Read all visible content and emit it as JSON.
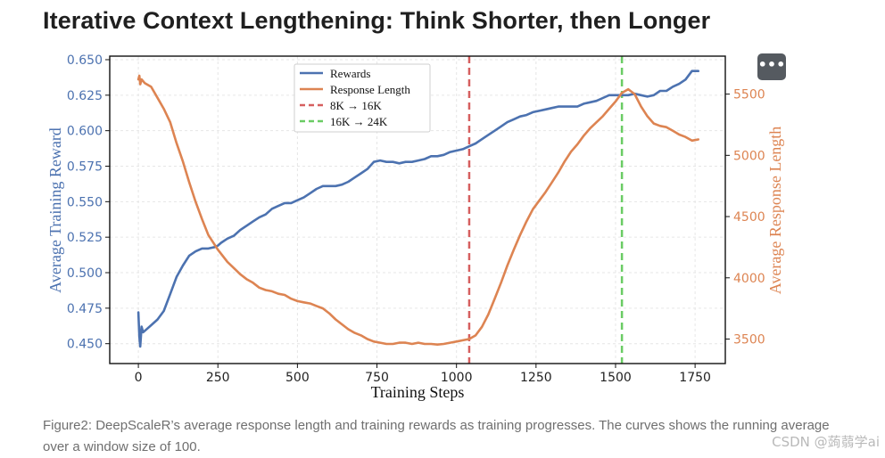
{
  "page": {
    "title": "Iterative Context Lengthening: Think Shorter, then Longer",
    "caption": "Figure2: DeepScaleR’s average response length and training rewards as training progresses. The curves shows the running average over a window size of 100.",
    "more_button_icon": "more-dots-icon",
    "more_button_label": "•••",
    "watermark": "CSDN @蒟蒻学ai"
  },
  "chart_data": {
    "type": "line",
    "xlabel": "Training Steps",
    "ylabel_left": "Average Training Reward",
    "ylabel_right": "Average Response Length",
    "xlim": [
      -90,
      1845
    ],
    "ylim_left": [
      0.436,
      0.6525
    ],
    "ylim_right": [
      3300,
      5810
    ],
    "x_ticks": [
      0,
      250,
      500,
      750,
      1000,
      1250,
      1500,
      1750
    ],
    "y_left_ticks": [
      "0.450",
      "0.475",
      "0.500",
      "0.525",
      "0.550",
      "0.575",
      "0.600",
      "0.625",
      "0.650"
    ],
    "y_right_ticks": [
      3500,
      4000,
      4500,
      5000,
      5500
    ],
    "grid": true,
    "legend_position": "top-center",
    "legend": [
      "Rewards",
      "Response Length",
      "8K → 16K",
      "16K → 24K"
    ],
    "vlines": [
      {
        "name": "8K → 16K",
        "x": 1040,
        "color": "#d65f5f"
      },
      {
        "name": "16K → 24K",
        "x": 1520,
        "color": "#6acc64"
      }
    ],
    "series": [
      {
        "name": "Rewards",
        "axis": "left",
        "color": "#4c72b0",
        "x": [
          0,
          3,
          6,
          10,
          15,
          25,
          40,
          60,
          80,
          100,
          120,
          140,
          160,
          180,
          200,
          220,
          240,
          250,
          260,
          280,
          300,
          320,
          340,
          360,
          380,
          400,
          420,
          440,
          460,
          480,
          500,
          520,
          540,
          560,
          580,
          600,
          620,
          640,
          660,
          680,
          700,
          720,
          740,
          760,
          780,
          800,
          820,
          840,
          860,
          880,
          900,
          920,
          940,
          960,
          980,
          1000,
          1020,
          1040,
          1060,
          1080,
          1100,
          1120,
          1140,
          1160,
          1180,
          1200,
          1220,
          1240,
          1260,
          1280,
          1300,
          1320,
          1340,
          1360,
          1380,
          1400,
          1420,
          1440,
          1460,
          1480,
          1500,
          1520,
          1540,
          1560,
          1580,
          1600,
          1620,
          1640,
          1660,
          1680,
          1700,
          1720,
          1740,
          1760
        ],
        "values": [
          0.472,
          0.455,
          0.448,
          0.462,
          0.458,
          0.46,
          0.463,
          0.467,
          0.473,
          0.485,
          0.497,
          0.505,
          0.512,
          0.515,
          0.517,
          0.517,
          0.518,
          0.519,
          0.521,
          0.524,
          0.526,
          0.53,
          0.533,
          0.536,
          0.539,
          0.541,
          0.545,
          0.547,
          0.549,
          0.549,
          0.551,
          0.553,
          0.556,
          0.559,
          0.561,
          0.561,
          0.561,
          0.562,
          0.564,
          0.567,
          0.57,
          0.573,
          0.578,
          0.579,
          0.578,
          0.578,
          0.577,
          0.578,
          0.578,
          0.579,
          0.58,
          0.582,
          0.582,
          0.583,
          0.585,
          0.586,
          0.587,
          0.589,
          0.591,
          0.594,
          0.597,
          0.6,
          0.603,
          0.606,
          0.608,
          0.61,
          0.611,
          0.613,
          0.614,
          0.615,
          0.616,
          0.617,
          0.617,
          0.617,
          0.617,
          0.619,
          0.62,
          0.621,
          0.623,
          0.625,
          0.625,
          0.625,
          0.625,
          0.626,
          0.625,
          0.624,
          0.625,
          0.628,
          0.628,
          0.631,
          0.633,
          0.636,
          0.642,
          0.642
        ]
      },
      {
        "name": "Response Length",
        "axis": "right",
        "color": "#dd8452",
        "x": [
          0,
          3,
          6,
          10,
          20,
          40,
          60,
          80,
          100,
          120,
          140,
          160,
          180,
          200,
          220,
          250,
          280,
          300,
          320,
          340,
          360,
          380,
          400,
          420,
          440,
          460,
          480,
          500,
          520,
          540,
          560,
          580,
          600,
          620,
          640,
          660,
          680,
          700,
          720,
          740,
          760,
          780,
          800,
          820,
          840,
          860,
          880,
          900,
          920,
          940,
          960,
          980,
          1000,
          1020,
          1040,
          1060,
          1080,
          1100,
          1120,
          1140,
          1160,
          1180,
          1200,
          1220,
          1240,
          1260,
          1280,
          1300,
          1320,
          1340,
          1360,
          1380,
          1400,
          1420,
          1440,
          1460,
          1480,
          1500,
          1520,
          1540,
          1560,
          1580,
          1600,
          1620,
          1640,
          1660,
          1680,
          1700,
          1720,
          1740,
          1760
        ],
        "values": [
          5620,
          5650,
          5580,
          5620,
          5590,
          5560,
          5470,
          5380,
          5270,
          5100,
          4950,
          4780,
          4620,
          4480,
          4350,
          4230,
          4130,
          4080,
          4030,
          3990,
          3960,
          3920,
          3900,
          3890,
          3870,
          3860,
          3830,
          3810,
          3800,
          3790,
          3770,
          3750,
          3710,
          3660,
          3620,
          3580,
          3550,
          3530,
          3500,
          3480,
          3470,
          3460,
          3460,
          3470,
          3470,
          3460,
          3470,
          3460,
          3460,
          3455,
          3460,
          3470,
          3480,
          3490,
          3500,
          3530,
          3600,
          3700,
          3830,
          3960,
          4100,
          4230,
          4350,
          4460,
          4560,
          4630,
          4700,
          4780,
          4860,
          4950,
          5030,
          5090,
          5160,
          5220,
          5270,
          5320,
          5380,
          5440,
          5510,
          5540,
          5500,
          5400,
          5320,
          5260,
          5240,
          5230,
          5200,
          5170,
          5150,
          5120,
          5130
        ]
      }
    ]
  }
}
